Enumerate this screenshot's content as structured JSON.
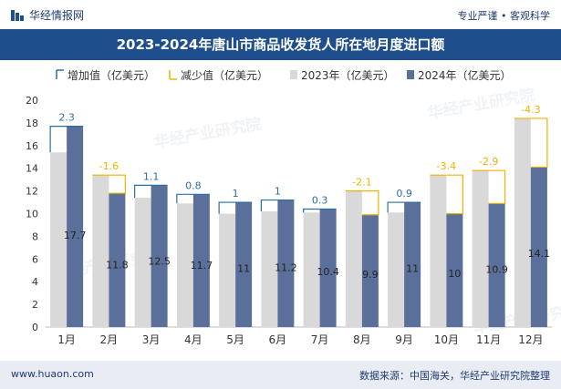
{
  "header": {
    "brand": "华经情报网",
    "tagline": "专业严谨 • 客观科学"
  },
  "footer": {
    "website": "www.huaon.com",
    "source": "数据来源：中国海关，华经产业研究院整理"
  },
  "watermark": "华经产业研究院",
  "colors": {
    "bar_2023": "#d9d9d9",
    "bar_2024": "#5b6f9b",
    "increase": "#2e6e9e",
    "decrease": "#f0b400",
    "title_bg": "#1f4e8c"
  },
  "chart_data": {
    "type": "bar",
    "title": "2023-2024年唐山市商品收发货人所在地月度进口额",
    "categories": [
      "1月",
      "2月",
      "3月",
      "4月",
      "5月",
      "6月",
      "7月",
      "8月",
      "9月",
      "10月",
      "11月",
      "12月"
    ],
    "series": [
      {
        "name": "2023年（亿美元）",
        "values": [
          15.4,
          13.4,
          11.4,
          10.9,
          10.0,
          10.2,
          10.1,
          12.0,
          10.1,
          13.4,
          13.8,
          18.4
        ]
      },
      {
        "name": "2024年（亿美元）",
        "values": [
          17.7,
          11.8,
          12.5,
          11.7,
          11,
          11.2,
          10.4,
          9.9,
          11,
          10,
          10.9,
          14.1
        ]
      }
    ],
    "change": [
      2.3,
      -1.6,
      1.1,
      0.8,
      1,
      1,
      0.3,
      -2.1,
      0.9,
      -3.4,
      -2.9,
      -4.3
    ],
    "legend": [
      "增加值（亿美元）",
      "减少值（亿美元）",
      "2023年（亿美元）",
      "2024年（亿美元）"
    ],
    "legend_position": "top",
    "ylim": [
      0,
      20
    ],
    "yticks": [
      0,
      2,
      4,
      6,
      8,
      10,
      12,
      14,
      16,
      18,
      20
    ],
    "grid": false
  }
}
